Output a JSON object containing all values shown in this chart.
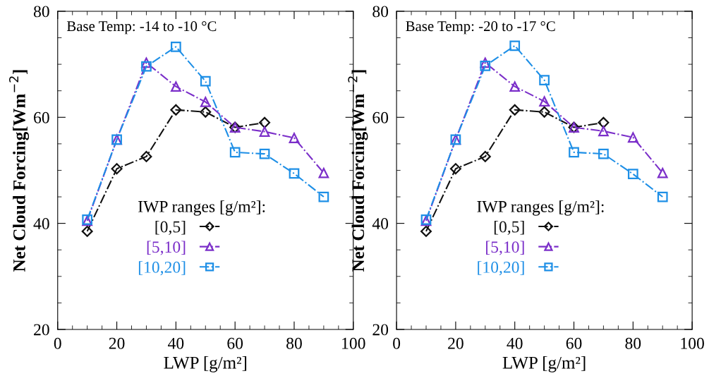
{
  "chart_data": [
    {
      "type": "line",
      "annotations": [
        "Base Temp: -14 to -10 °C"
      ],
      "xlabel": "LWP [g/m²]",
      "ylabel": "Net Cloud Forcing[Wm$^{−2}$]",
      "legend_title": "IWP ranges [g/m²]:",
      "legend": "bottom left",
      "line_style": "dashdot",
      "grid": false,
      "xlim": [
        0,
        100
      ],
      "xticks": [
        0,
        20,
        40,
        60,
        80,
        100
      ],
      "ylim": [
        20,
        80
      ],
      "yticks": [
        20,
        40,
        60,
        80
      ],
      "x": [
        10,
        20,
        30,
        40,
        50,
        60,
        70,
        80,
        90
      ],
      "series": [
        {
          "name": "[0,5]",
          "color": "#111111",
          "marker": "diamond",
          "values": [
            38.5,
            50.3,
            52.6,
            61.4,
            61.0,
            58.1,
            59.0,
            null,
            null
          ]
        },
        {
          "name": "[5,10]",
          "color": "#7b2fc9",
          "marker": "triangle",
          "values": [
            40.5,
            55.8,
            70.3,
            65.8,
            62.9,
            58.1,
            57.3,
            56.1,
            49.5
          ]
        },
        {
          "name": "[10,20]",
          "color": "#1e8fe6",
          "marker": "square",
          "values": [
            40.7,
            55.8,
            69.6,
            73.3,
            66.8,
            53.4,
            53.1,
            49.4,
            45.0
          ]
        }
      ]
    },
    {
      "type": "line",
      "annotations": [
        "Base Temp: -20 to -17 °C"
      ],
      "xlabel": "LWP [g/m²]",
      "ylabel": "Net Cloud Forcing[Wm$^{−2}$]",
      "legend_title": "IWP ranges [g/m²]:",
      "legend": "bottom left",
      "line_style": "dashdot",
      "grid": false,
      "xlim": [
        0,
        100
      ],
      "xticks": [
        0,
        20,
        40,
        60,
        80,
        100
      ],
      "ylim": [
        20,
        80
      ],
      "yticks": [
        20,
        40,
        60,
        80
      ],
      "x": [
        10,
        20,
        30,
        40,
        50,
        60,
        70,
        80,
        90
      ],
      "series": [
        {
          "name": "[0,5]",
          "color": "#111111",
          "marker": "diamond",
          "values": [
            38.5,
            50.3,
            52.6,
            61.4,
            61.0,
            58.1,
            59.0,
            null,
            null
          ]
        },
        {
          "name": "[5,10]",
          "color": "#7b2fc9",
          "marker": "triangle",
          "values": [
            40.5,
            55.8,
            70.3,
            65.8,
            63.0,
            58.1,
            57.4,
            56.2,
            49.5
          ]
        },
        {
          "name": "[10,20]",
          "color": "#1e8fe6",
          "marker": "square",
          "values": [
            40.7,
            55.8,
            69.7,
            73.5,
            67.0,
            53.4,
            53.1,
            49.3,
            45.0
          ]
        }
      ]
    }
  ]
}
